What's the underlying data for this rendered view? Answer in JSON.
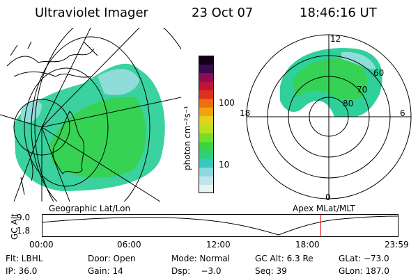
{
  "header": {
    "title": "Ultraviolet Imager",
    "date": "23 Oct 07",
    "time": "18:46:16 UT"
  },
  "geo_panel": {
    "label": "Geographic Lat/Lon"
  },
  "polar_panel": {
    "label": "Apex MLat/MLT",
    "mlt_labels": {
      "top": "12",
      "left": "18",
      "right": "6",
      "bottom": "0"
    },
    "mlat_labels": [
      "60",
      "70",
      "80"
    ]
  },
  "colorbar": {
    "unit_label": "photon cm⁻²s⁻¹",
    "ticks": [
      "100",
      "10"
    ],
    "colors": [
      "#e8f4f4",
      "#bfe6ea",
      "#8fd8df",
      "#36c9c1",
      "#2fcf82",
      "#37d640",
      "#78dd2a",
      "#b9e11d",
      "#e3d11b",
      "#f2a313",
      "#f06e0e",
      "#e0301a",
      "#c0123a",
      "#8c0c55",
      "#3c0a4c",
      "#11001a"
    ]
  },
  "timeline": {
    "ylabel": "GC Alt",
    "y_ticks": [
      "9.0",
      "1.8"
    ],
    "x_ticks": [
      "00:00",
      "06:00",
      "12:00",
      "18:00",
      "23:59"
    ],
    "current_time_fraction": 0.782,
    "marker_color": "#dd0000"
  },
  "info": {
    "filter": "Flt: LBHL",
    "door": "Door: Open",
    "mode": "Mode: Normal",
    "gc_alt": "GC Alt: 6.3 Re",
    "glat": "GLat: −73.0",
    "ip": "IP: 36.0",
    "gain": "Gain: 14",
    "dsp": "Dsp:    −3.0",
    "seq": "Seq: 39",
    "glon": "GLon: 187.0"
  }
}
